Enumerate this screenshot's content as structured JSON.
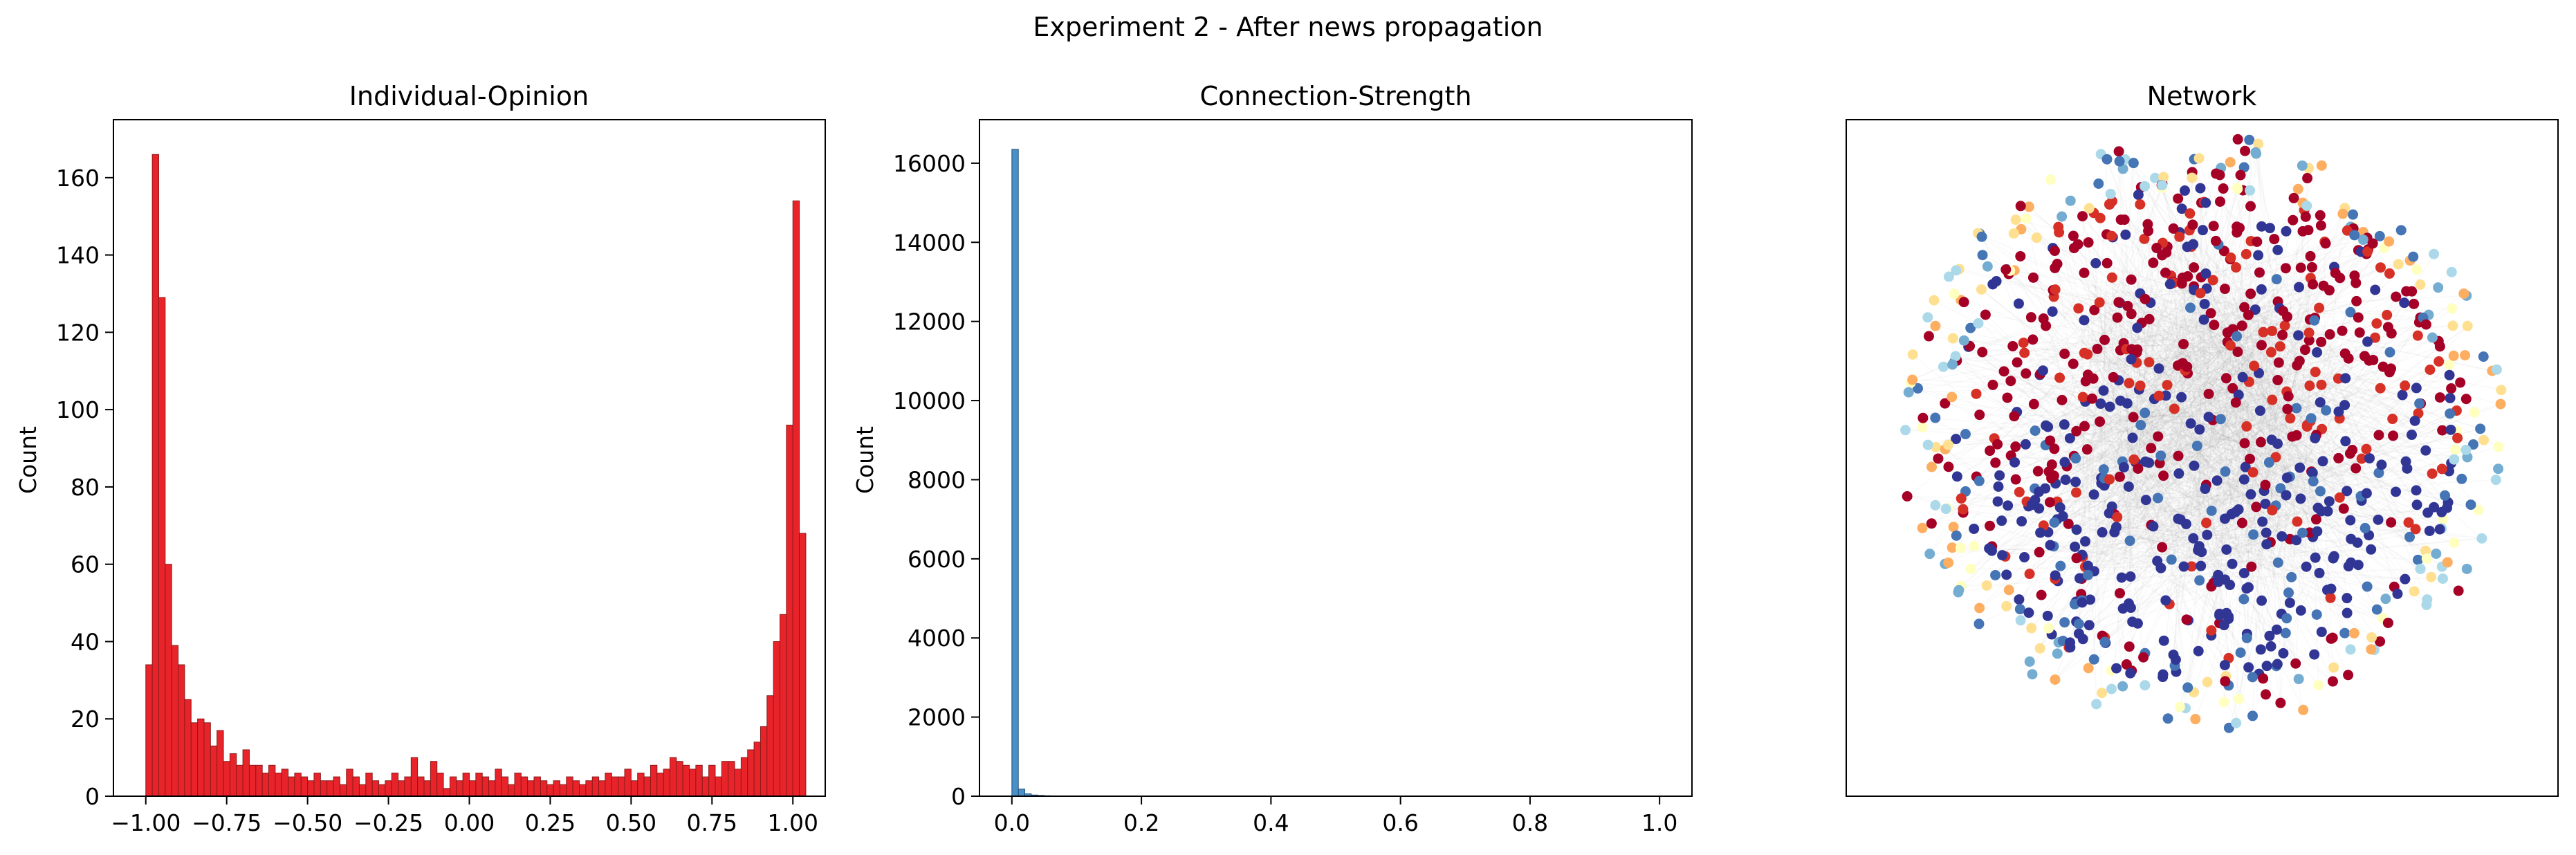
{
  "figure": {
    "suptitle": "Experiment 2 - After news propagation"
  },
  "chart_data": [
    {
      "type": "bar",
      "title": "Individual-Opinion",
      "xlabel": "",
      "ylabel": "Count",
      "xlim": [
        -1.1,
        1.1
      ],
      "ylim": [
        0,
        175
      ],
      "xticks": [
        -1.0,
        -0.75,
        -0.5,
        -0.25,
        0.0,
        0.25,
        0.5,
        0.75,
        1.0
      ],
      "xtick_labels": [
        "−1.00",
        "−0.75",
        "−0.50",
        "−0.25",
        "0.00",
        "0.25",
        "0.50",
        "0.75",
        "1.00"
      ],
      "yticks": [
        0,
        20,
        40,
        60,
        80,
        100,
        120,
        140,
        160
      ],
      "ytick_labels": [
        "0",
        "20",
        "40",
        "60",
        "80",
        "100",
        "120",
        "140",
        "160"
      ],
      "bin_start": -1.0,
      "bin_width": 0.02,
      "color": "#e8242a",
      "edge_color": "#8a1a1a",
      "values": [
        34,
        166,
        129,
        60,
        39,
        34,
        25,
        19,
        20,
        19,
        13,
        17,
        9,
        11,
        8,
        12,
        8,
        8,
        6,
        8,
        6,
        7,
        5,
        6,
        5,
        4,
        6,
        4,
        4,
        5,
        3,
        7,
        5,
        3,
        6,
        4,
        3,
        4,
        6,
        4,
        5,
        10,
        5,
        4,
        9,
        6,
        2,
        5,
        4,
        6,
        4,
        6,
        5,
        4,
        7,
        5,
        3,
        6,
        5,
        4,
        5,
        4,
        3,
        4,
        3,
        5,
        4,
        3,
        4,
        5,
        4,
        6,
        5,
        5,
        7,
        4,
        6,
        5,
        8,
        6,
        7,
        10,
        9,
        8,
        7,
        8,
        5,
        8,
        5,
        9,
        9,
        7,
        10,
        12,
        14,
        18,
        26,
        40,
        47,
        96,
        154,
        68
      ]
    },
    {
      "type": "bar",
      "title": "Connection-Strength",
      "xlabel": "",
      "ylabel": "Count",
      "xlim": [
        -0.05,
        1.05
      ],
      "ylim": [
        0,
        17100
      ],
      "xticks": [
        0.0,
        0.2,
        0.4,
        0.6,
        0.8,
        1.0
      ],
      "xtick_labels": [
        "0.0",
        "0.2",
        "0.4",
        "0.6",
        "0.8",
        "1.0"
      ],
      "yticks": [
        0,
        2000,
        4000,
        6000,
        8000,
        10000,
        12000,
        14000,
        16000
      ],
      "ytick_labels": [
        "0",
        "2000",
        "4000",
        "6000",
        "8000",
        "10000",
        "12000",
        "14000",
        "16000"
      ],
      "bin_start": 0.0,
      "bin_width": 0.01,
      "color": "#4a90c8",
      "edge_color": "#1f4e79",
      "values": [
        16350,
        180,
        60,
        30,
        20,
        12,
        8,
        5
      ]
    },
    {
      "type": "network",
      "title": "Network",
      "node_count": 1000,
      "edge_color": "#9a9a9a",
      "node_colors": {
        "strong_negative": "#313695",
        "negative": "#4575b4",
        "mild_negative": "#74add1",
        "weak_negative": "#abd9e9",
        "neutral": "#ffffbf",
        "weak_positive": "#fee090",
        "mild_positive": "#fdae61",
        "positive": "#d73027",
        "strong_positive": "#a50026"
      }
    }
  ]
}
